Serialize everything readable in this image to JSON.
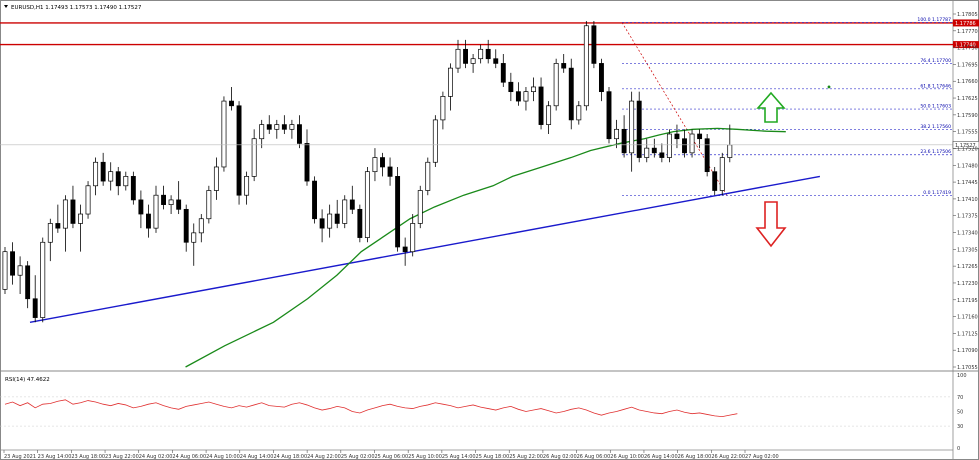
{
  "header": {
    "symbol_text": "EURUSD,H1  1.17493 1.17573 1.17490 1.17527",
    "rsi_label": "RSI(14) 47.4622"
  },
  "colors": {
    "bull": "#ffffff",
    "bear": "#000000",
    "ma": "#1a8a1a",
    "trend": "#1a1acc",
    "resistance": "#cc0000",
    "fib": "#3333cc",
    "rsi": "#e03030",
    "arrow_up": "#22aa22",
    "arrow_down": "#dd2222"
  },
  "chart_data": {
    "type": "candlestick",
    "symbol": "EURUSD",
    "timeframe": "H1",
    "y_range": [
      1.17055,
      1.17805
    ],
    "y_ticks": [
      "1.17805",
      "1.17770",
      "1.17730",
      "1.17695",
      "1.17660",
      "1.17625",
      "1.17590",
      "1.17555",
      "1.17520",
      "1.17480",
      "1.17445",
      "1.17410",
      "1.17375",
      "1.17340",
      "1.17305",
      "1.17265",
      "1.17230",
      "1.17195",
      "1.17160",
      "1.17125",
      "1.17090",
      "1.17055"
    ],
    "x_ticks": [
      "23 Aug 2021",
      "23 Aug 14:00",
      "23 Aug 18:00",
      "23 Aug 22:00",
      "24 Aug 02:00",
      "24 Aug 06:00",
      "24 Aug 10:00",
      "24 Aug 14:00",
      "24 Aug 18:00",
      "24 Aug 22:00",
      "25 Aug 02:00",
      "25 Aug 06:00",
      "25 Aug 10:00",
      "25 Aug 14:00",
      "25 Aug 18:00",
      "25 Aug 22:00",
      "26 Aug 02:00",
      "26 Aug 06:00",
      "26 Aug 10:00",
      "26 Aug 14:00",
      "26 Aug 18:00",
      "26 Aug 22:00",
      "27 Aug 02:00"
    ],
    "current_price": "1.17527",
    "current_price_value": 1.17527,
    "resistance_levels": [
      {
        "label": "1.17786",
        "value": 1.17786
      },
      {
        "label": "1.17740",
        "value": 1.1774
      }
    ],
    "fib_levels": [
      {
        "label": "100.0 1.17787",
        "value": 1.17787
      },
      {
        "label": "76.4 1.17700",
        "value": 1.177
      },
      {
        "label": "61.8 1.17646",
        "value": 1.17646
      },
      {
        "label": "50.0 1.17603",
        "value": 1.17603
      },
      {
        "label": "38.2 1.17560",
        "value": 1.1756
      },
      {
        "label": "23.6 1.17506",
        "value": 1.17506
      },
      {
        "label": "0.0 1.17419",
        "value": 1.17419
      }
    ],
    "trend_line": [
      [
        0,
        1.1715
      ],
      [
        98,
        1.1746
      ]
    ],
    "candles": [
      [
        1.1722,
        1.1731,
        1.1721,
        1.173
      ],
      [
        1.173,
        1.1732,
        1.1723,
        1.1725
      ],
      [
        1.1725,
        1.1729,
        1.1721,
        1.1727
      ],
      [
        1.1727,
        1.1728,
        1.1718,
        1.172
      ],
      [
        1.172,
        1.1725,
        1.1715,
        1.1716
      ],
      [
        1.1716,
        1.1733,
        1.1715,
        1.1732
      ],
      [
        1.1732,
        1.1737,
        1.1728,
        1.1736
      ],
      [
        1.1736,
        1.174,
        1.1734,
        1.1735
      ],
      [
        1.1735,
        1.1742,
        1.173,
        1.1741
      ],
      [
        1.1741,
        1.1744,
        1.1735,
        1.1736
      ],
      [
        1.1736,
        1.174,
        1.173,
        1.1738
      ],
      [
        1.1738,
        1.1745,
        1.1737,
        1.1744
      ],
      [
        1.1744,
        1.175,
        1.1742,
        1.1749
      ],
      [
        1.1749,
        1.1751,
        1.1744,
        1.1745
      ],
      [
        1.1745,
        1.1749,
        1.1743,
        1.1747
      ],
      [
        1.1747,
        1.1748,
        1.1742,
        1.1744
      ],
      [
        1.1744,
        1.1747,
        1.1743,
        1.1746
      ],
      [
        1.1746,
        1.1747,
        1.174,
        1.1741
      ],
      [
        1.1741,
        1.1743,
        1.1735,
        1.1738
      ],
      [
        1.1738,
        1.174,
        1.1733,
        1.1735
      ],
      [
        1.1735,
        1.1744,
        1.1734,
        1.1742
      ],
      [
        1.1742,
        1.1744,
        1.1739,
        1.174
      ],
      [
        1.174,
        1.1742,
        1.1738,
        1.1741
      ],
      [
        1.1741,
        1.1745,
        1.1738,
        1.1739
      ],
      [
        1.1739,
        1.174,
        1.173,
        1.1732
      ],
      [
        1.1732,
        1.1736,
        1.1727,
        1.1734
      ],
      [
        1.1734,
        1.1738,
        1.1732,
        1.1737
      ],
      [
        1.1737,
        1.1744,
        1.1736,
        1.1743
      ],
      [
        1.1743,
        1.175,
        1.1741,
        1.1748
      ],
      [
        1.1748,
        1.1763,
        1.1747,
        1.1762
      ],
      [
        1.1762,
        1.1765,
        1.176,
        1.1761
      ],
      [
        1.1761,
        1.1762,
        1.174,
        1.1742
      ],
      [
        1.1742,
        1.1747,
        1.174,
        1.1746
      ],
      [
        1.1746,
        1.1756,
        1.1745,
        1.1754
      ],
      [
        1.1754,
        1.1758,
        1.1752,
        1.1757
      ],
      [
        1.1757,
        1.1759,
        1.1755,
        1.1756
      ],
      [
        1.1756,
        1.1758,
        1.1754,
        1.1757
      ],
      [
        1.1757,
        1.1759,
        1.1755,
        1.1756
      ],
      [
        1.1756,
        1.1758,
        1.1754,
        1.1757
      ],
      [
        1.1757,
        1.1759,
        1.1752,
        1.1753
      ],
      [
        1.1753,
        1.1756,
        1.1744,
        1.1745
      ],
      [
        1.1745,
        1.1746,
        1.1736,
        1.1737
      ],
      [
        1.1737,
        1.1739,
        1.1732,
        1.1735
      ],
      [
        1.1735,
        1.174,
        1.1733,
        1.1738
      ],
      [
        1.1738,
        1.1741,
        1.1735,
        1.1736
      ],
      [
        1.1736,
        1.1742,
        1.1735,
        1.1741
      ],
      [
        1.1741,
        1.1744,
        1.1738,
        1.1739
      ],
      [
        1.1739,
        1.174,
        1.1732,
        1.1733
      ],
      [
        1.1733,
        1.1748,
        1.1732,
        1.1747
      ],
      [
        1.1747,
        1.1752,
        1.1745,
        1.175
      ],
      [
        1.175,
        1.1751,
        1.1746,
        1.1748
      ],
      [
        1.1748,
        1.175,
        1.1744,
        1.1746
      ],
      [
        1.1746,
        1.1748,
        1.173,
        1.1731
      ],
      [
        1.1731,
        1.1733,
        1.1727,
        1.173
      ],
      [
        1.173,
        1.1738,
        1.1729,
        1.1736
      ],
      [
        1.1736,
        1.1744,
        1.1735,
        1.1743
      ],
      [
        1.1743,
        1.175,
        1.1742,
        1.1749
      ],
      [
        1.1749,
        1.1759,
        1.1748,
        1.1758
      ],
      [
        1.1758,
        1.1764,
        1.1756,
        1.1763
      ],
      [
        1.1763,
        1.177,
        1.176,
        1.1769
      ],
      [
        1.1769,
        1.1775,
        1.1768,
        1.1773
      ],
      [
        1.1773,
        1.1775,
        1.1769,
        1.177
      ],
      [
        1.177,
        1.1772,
        1.1768,
        1.1771
      ],
      [
        1.1771,
        1.1774,
        1.177,
        1.1773
      ],
      [
        1.1773,
        1.1775,
        1.177,
        1.1771
      ],
      [
        1.1771,
        1.1773,
        1.1769,
        1.177
      ],
      [
        1.177,
        1.1772,
        1.1765,
        1.1766
      ],
      [
        1.1766,
        1.1768,
        1.1762,
        1.1764
      ],
      [
        1.1764,
        1.1766,
        1.1761,
        1.1762
      ],
      [
        1.1762,
        1.1765,
        1.176,
        1.1764
      ],
      [
        1.1764,
        1.1767,
        1.1762,
        1.1765
      ],
      [
        1.1765,
        1.1767,
        1.1756,
        1.1757
      ],
      [
        1.1757,
        1.1762,
        1.1755,
        1.1761
      ],
      [
        1.1761,
        1.1771,
        1.176,
        1.177
      ],
      [
        1.177,
        1.1772,
        1.1768,
        1.1769
      ],
      [
        1.1769,
        1.1771,
        1.1756,
        1.1758
      ],
      [
        1.1758,
        1.1762,
        1.1757,
        1.1761
      ],
      [
        1.1761,
        1.1779,
        1.176,
        1.1778
      ],
      [
        1.1778,
        1.1779,
        1.1769,
        1.177
      ],
      [
        1.177,
        1.1771,
        1.1762,
        1.1764
      ],
      [
        1.1764,
        1.1765,
        1.1753,
        1.1754
      ],
      [
        1.1754,
        1.1758,
        1.1752,
        1.1756
      ],
      [
        1.1756,
        1.1759,
        1.175,
        1.1751
      ],
      [
        1.1751,
        1.1764,
        1.1747,
        1.1762
      ],
      [
        1.1762,
        1.1764,
        1.1749,
        1.175
      ],
      [
        1.175,
        1.1754,
        1.1749,
        1.1752
      ],
      [
        1.1752,
        1.1754,
        1.175,
        1.1751
      ],
      [
        1.1751,
        1.1753,
        1.1749,
        1.175
      ],
      [
        1.175,
        1.1756,
        1.1749,
        1.1755
      ],
      [
        1.1755,
        1.1757,
        1.1752,
        1.1754
      ],
      [
        1.1754,
        1.1756,
        1.175,
        1.1751
      ],
      [
        1.1751,
        1.1756,
        1.175,
        1.1755
      ],
      [
        1.1755,
        1.1756,
        1.1752,
        1.1754
      ],
      [
        1.1754,
        1.1755,
        1.1746,
        1.1747
      ],
      [
        1.1747,
        1.1748,
        1.1742,
        1.1743
      ],
      [
        1.1743,
        1.1751,
        1.1742,
        1.175
      ],
      [
        1.175,
        1.1757,
        1.1749,
        1.17527
      ]
    ],
    "moving_average": [
      [
        37,
        1.17055
      ],
      [
        45,
        1.171
      ],
      [
        55,
        1.1715
      ],
      [
        62,
        1.172
      ],
      [
        68,
        1.1725
      ],
      [
        73,
        1.173
      ],
      [
        78,
        1.17335
      ],
      [
        83,
        1.1737
      ],
      [
        88,
        1.17395
      ],
      [
        94,
        1.1742
      ],
      [
        100,
        1.1744
      ],
      [
        104,
        1.1746
      ],
      [
        110,
        1.1748
      ],
      [
        116,
        1.175
      ],
      [
        120,
        1.17515
      ],
      [
        126,
        1.1753
      ],
      [
        131,
        1.1754
      ],
      [
        134,
        1.17548
      ],
      [
        137,
        1.17555
      ],
      [
        141,
        1.1756
      ],
      [
        146,
        1.17562
      ],
      [
        150,
        1.1756
      ],
      [
        156,
        1.17556
      ],
      [
        160,
        1.17555
      ]
    ],
    "rsi": {
      "label": "RSI(14) 47.4622",
      "value": 47.4622,
      "y_ticks": [
        100,
        70,
        50,
        30,
        0
      ],
      "values": [
        60,
        63,
        58,
        62,
        55,
        60,
        61,
        64,
        66,
        60,
        62,
        65,
        63,
        60,
        58,
        61,
        59,
        55,
        57,
        60,
        62,
        58,
        55,
        53,
        57,
        59,
        61,
        63,
        60,
        57,
        55,
        58,
        56,
        59,
        62,
        58,
        57,
        56,
        60,
        62,
        59,
        55,
        52,
        54,
        57,
        55,
        50,
        48,
        52,
        55,
        58,
        60,
        57,
        55,
        54,
        57,
        59,
        62,
        60,
        58,
        55,
        57,
        59,
        56,
        54,
        52,
        55,
        57,
        53,
        50,
        52,
        54,
        51,
        48,
        50,
        53,
        55,
        52,
        48,
        45,
        48,
        50,
        53,
        56,
        52,
        50,
        48,
        47,
        50,
        52,
        49,
        47,
        48,
        46,
        44,
        43,
        45,
        47
      ]
    }
  }
}
